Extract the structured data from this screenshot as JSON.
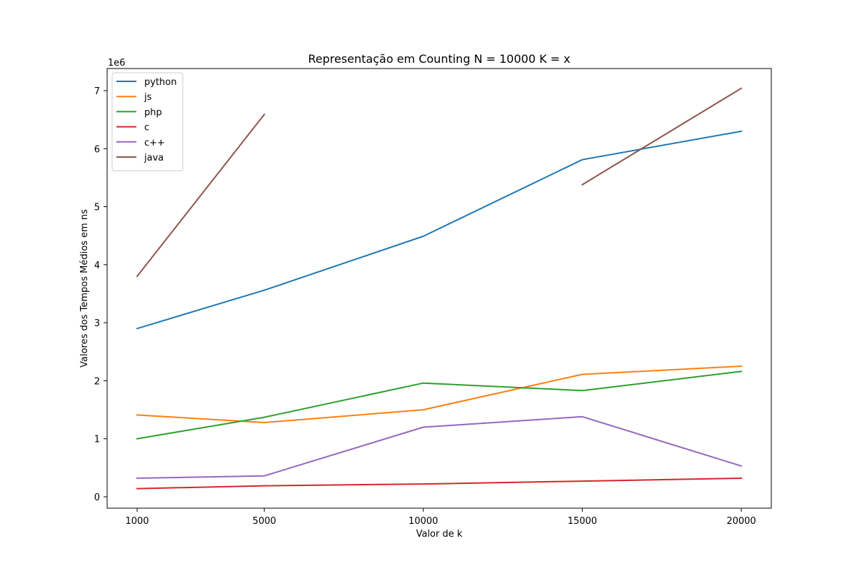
{
  "chart_data": {
    "type": "line",
    "title": "Representação em Counting N = 10000 K = x",
    "xlabel": "Valor de k",
    "ylabel": "Valores dos Tempos Médios em ns",
    "y_offset_label": "1e6",
    "x": [
      1000,
      5000,
      10000,
      15000,
      20000
    ],
    "xlim": [
      0,
      23
    ],
    "ylim": [
      -0.2,
      7.35
    ],
    "yticks": [
      0,
      1,
      2,
      3,
      4,
      5,
      6,
      7
    ],
    "y_scale_note": "values in units of 1e6 ns",
    "grid": false,
    "legend_position": "top-left",
    "series": [
      {
        "name": "python",
        "color": "#1f77b4",
        "values": [
          2.9,
          3.56,
          4.49,
          5.81,
          6.3
        ]
      },
      {
        "name": "js",
        "color": "#ff7f0e",
        "values": [
          1.41,
          1.28,
          1.5,
          2.11,
          2.25
        ]
      },
      {
        "name": "php",
        "color": "#2ca02c",
        "values": [
          1.0,
          1.37,
          1.96,
          1.83,
          2.16
        ]
      },
      {
        "name": "c",
        "color": "#d62728",
        "values": [
          0.14,
          0.19,
          0.22,
          0.27,
          0.32
        ]
      },
      {
        "name": "c++",
        "color": "#9467bd",
        "values": [
          0.32,
          0.36,
          1.2,
          1.38,
          0.53
        ]
      },
      {
        "name": "java",
        "color": "#8c564b",
        "values": [
          3.8,
          6.59,
          null,
          5.38,
          7.04
        ]
      }
    ]
  }
}
